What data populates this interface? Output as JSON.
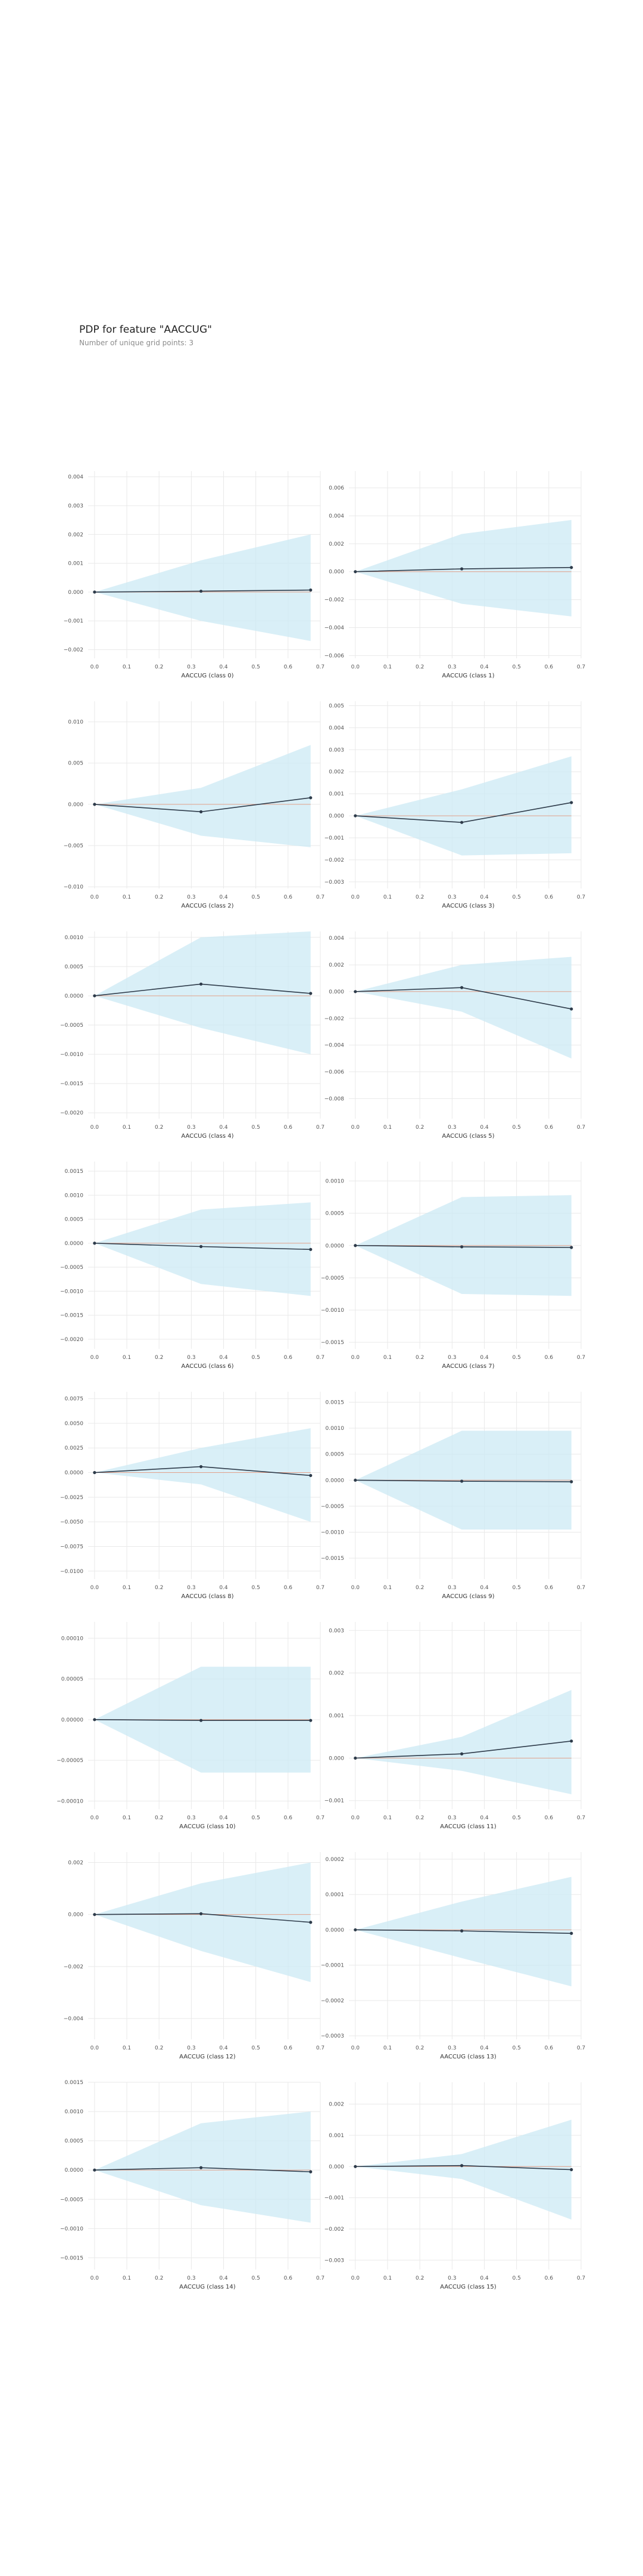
{
  "title": "PDP for feature \"AACCUG\"",
  "subtitle": "Number of unique grid points: 3",
  "colors": {
    "band": "#cce9f4",
    "line": "#2e3b4a",
    "zero": "#e2a08a",
    "grid": "#e9e9e9"
  },
  "chart_data": [
    {
      "type": "line",
      "xlabel": "AACCUG (class 0)",
      "x": [
        0,
        0.33,
        0.67
      ],
      "y": [
        0,
        3e-05,
        7e-05
      ],
      "lower": [
        0,
        -0.001,
        -0.0017
      ],
      "upper": [
        0,
        0.0011,
        0.002
      ],
      "ylim": [
        -0.0023,
        0.0042
      ],
      "yticks": [
        0.004,
        0.003,
        0.002,
        0.001,
        0.0,
        -0.001,
        -0.002
      ],
      "ytick_labels": [
        "0.004",
        "0.003",
        "0.002",
        "0.001",
        "0.000",
        "−0.001",
        "−0.002"
      ],
      "xlim": [
        -0.02,
        0.7
      ],
      "xticks": [
        0.0,
        0.1,
        0.2,
        0.3,
        0.4,
        0.5,
        0.6,
        0.7
      ]
    },
    {
      "type": "line",
      "xlabel": "AACCUG (class 1)",
      "x": [
        0,
        0.33,
        0.67
      ],
      "y": [
        0,
        0.0002,
        0.0003
      ],
      "lower": [
        0,
        -0.0023,
        -0.0032
      ],
      "upper": [
        0,
        0.0027,
        0.0037
      ],
      "ylim": [
        -0.0062,
        0.0072
      ],
      "yticks": [
        0.006,
        0.004,
        0.002,
        0.0,
        -0.002,
        -0.004,
        -0.006
      ],
      "ytick_labels": [
        "0.006",
        "0.004",
        "0.002",
        "0.000",
        "−0.002",
        "−0.004",
        "−0.006"
      ],
      "xlim": [
        -0.02,
        0.7
      ],
      "xticks": [
        0.0,
        0.1,
        0.2,
        0.3,
        0.4,
        0.5,
        0.6,
        0.7
      ]
    },
    {
      "type": "line",
      "xlabel": "AACCUG (class 2)",
      "x": [
        0,
        0.33,
        0.67
      ],
      "y": [
        0,
        -0.0009,
        0.0008
      ],
      "lower": [
        0,
        -0.0038,
        -0.0052
      ],
      "upper": [
        0,
        0.002,
        0.0072
      ],
      "ylim": [
        -0.0102,
        0.0125
      ],
      "yticks": [
        0.01,
        0.005,
        0.0,
        -0.005,
        -0.01
      ],
      "ytick_labels": [
        "0.010",
        "0.005",
        "0.000",
        "−0.005",
        "−0.010"
      ],
      "xlim": [
        -0.02,
        0.7
      ],
      "xticks": [
        0.0,
        0.1,
        0.2,
        0.3,
        0.4,
        0.5,
        0.6,
        0.7
      ]
    },
    {
      "type": "line",
      "xlabel": "AACCUG (class 3)",
      "x": [
        0,
        0.33,
        0.67
      ],
      "y": [
        0,
        -0.0003,
        0.0006
      ],
      "lower": [
        0,
        -0.0018,
        -0.0017
      ],
      "upper": [
        0,
        0.0012,
        0.0027
      ],
      "ylim": [
        -0.0033,
        0.0052
      ],
      "yticks": [
        0.005,
        0.004,
        0.003,
        0.002,
        0.001,
        0.0,
        -0.001,
        -0.002,
        -0.003
      ],
      "ytick_labels": [
        "0.005",
        "0.004",
        "0.003",
        "0.002",
        "0.001",
        "0.000",
        "−0.001",
        "−0.002",
        "−0.003"
      ],
      "xlim": [
        -0.02,
        0.7
      ],
      "xticks": [
        0.0,
        0.1,
        0.2,
        0.3,
        0.4,
        0.5,
        0.6,
        0.7
      ]
    },
    {
      "type": "line",
      "xlabel": "AACCUG (class 4)",
      "x": [
        0,
        0.33,
        0.67
      ],
      "y": [
        0,
        0.0002,
        4e-05
      ],
      "lower": [
        0,
        -0.00055,
        -0.001
      ],
      "upper": [
        0,
        0.001,
        0.0011
      ],
      "ylim": [
        -0.0021,
        0.0011
      ],
      "yticks": [
        0.001,
        0.0005,
        0.0,
        -0.0005,
        -0.001,
        -0.0015,
        -0.002
      ],
      "ytick_labels": [
        "0.0010",
        "0.0005",
        "0.0000",
        "−0.0005",
        "−0.0010",
        "−0.0015",
        "−0.0020"
      ],
      "xlim": [
        -0.02,
        0.7
      ],
      "xticks": [
        0.0,
        0.1,
        0.2,
        0.3,
        0.4,
        0.5,
        0.6,
        0.7
      ]
    },
    {
      "type": "line",
      "xlabel": "AACCUG (class 5)",
      "x": [
        0,
        0.33,
        0.67
      ],
      "y": [
        0,
        0.0003,
        -0.0013
      ],
      "lower": [
        0,
        -0.0015,
        -0.005
      ],
      "upper": [
        0,
        0.002,
        0.0026
      ],
      "ylim": [
        -0.0095,
        0.0045
      ],
      "yticks": [
        0.004,
        0.002,
        0.0,
        -0.002,
        -0.004,
        -0.006,
        -0.008
      ],
      "ytick_labels": [
        "0.004",
        "0.002",
        "0.000",
        "−0.002",
        "−0.004",
        "−0.006",
        "−0.008"
      ],
      "xlim": [
        -0.02,
        0.7
      ],
      "xticks": [
        0.0,
        0.1,
        0.2,
        0.3,
        0.4,
        0.5,
        0.6,
        0.7
      ]
    },
    {
      "type": "line",
      "xlabel": "AACCUG (class 6)",
      "x": [
        0,
        0.33,
        0.67
      ],
      "y": [
        0,
        -7e-05,
        -0.00013
      ],
      "lower": [
        0,
        -0.00085,
        -0.0011
      ],
      "upper": [
        0,
        0.0007,
        0.00085
      ],
      "ylim": [
        -0.0022,
        0.0017
      ],
      "yticks": [
        0.0015,
        0.001,
        0.0005,
        0.0,
        -0.0005,
        -0.001,
        -0.0015,
        -0.002
      ],
      "ytick_labels": [
        "0.0015",
        "0.0010",
        "0.0005",
        "0.0000",
        "−0.0005",
        "−0.0010",
        "−0.0015",
        "−0.0020"
      ],
      "xlim": [
        -0.02,
        0.7
      ],
      "xticks": [
        0.0,
        0.1,
        0.2,
        0.3,
        0.4,
        0.5,
        0.6,
        0.7
      ]
    },
    {
      "type": "line",
      "xlabel": "AACCUG (class 7)",
      "x": [
        0,
        0.33,
        0.67
      ],
      "y": [
        0,
        -2e-05,
        -3e-05
      ],
      "lower": [
        0,
        -0.00075,
        -0.00078
      ],
      "upper": [
        0,
        0.00075,
        0.00078
      ],
      "ylim": [
        -0.0016,
        0.0013
      ],
      "yticks": [
        0.001,
        0.0005,
        0.0,
        -0.0005,
        -0.001,
        -0.0015
      ],
      "ytick_labels": [
        "0.0010",
        "0.0005",
        "0.0000",
        "−0.0005",
        "−0.0010",
        "−0.0015"
      ],
      "xlim": [
        -0.02,
        0.7
      ],
      "xticks": [
        0.0,
        0.1,
        0.2,
        0.3,
        0.4,
        0.5,
        0.6,
        0.7
      ]
    },
    {
      "type": "line",
      "xlabel": "AACCUG (class 8)",
      "x": [
        0,
        0.33,
        0.67
      ],
      "y": [
        0,
        0.0006,
        -0.0003
      ],
      "lower": [
        0,
        -0.0012,
        -0.005
      ],
      "upper": [
        0,
        0.0025,
        0.0045
      ],
      "ylim": [
        -0.0108,
        0.0082
      ],
      "yticks": [
        0.0075,
        0.005,
        0.0025,
        0.0,
        -0.0025,
        -0.005,
        -0.0075,
        -0.01
      ],
      "ytick_labels": [
        "0.0075",
        "0.0050",
        "0.0025",
        "0.0000",
        "−0.0025",
        "−0.0050",
        "−0.0075",
        "−0.0100"
      ],
      "xlim": [
        -0.02,
        0.7
      ],
      "xticks": [
        0.0,
        0.1,
        0.2,
        0.3,
        0.4,
        0.5,
        0.6,
        0.7
      ]
    },
    {
      "type": "line",
      "xlabel": "AACCUG (class 9)",
      "x": [
        0,
        0.33,
        0.67
      ],
      "y": [
        0,
        -2e-05,
        -3e-05
      ],
      "lower": [
        0,
        -0.00095,
        -0.00095
      ],
      "upper": [
        0,
        0.00095,
        0.00095
      ],
      "ylim": [
        -0.0019,
        0.0017
      ],
      "yticks": [
        0.0015,
        0.001,
        0.0005,
        0.0,
        -0.0005,
        -0.001,
        -0.0015
      ],
      "ytick_labels": [
        "0.0015",
        "0.0010",
        "0.0005",
        "0.0000",
        "−0.0005",
        "−0.0010",
        "−0.0015"
      ],
      "xlim": [
        -0.02,
        0.7
      ],
      "xticks": [
        0.0,
        0.1,
        0.2,
        0.3,
        0.4,
        0.5,
        0.6,
        0.7
      ]
    },
    {
      "type": "line",
      "xlabel": "AACCUG (class 10)",
      "x": [
        0,
        0.33,
        0.67
      ],
      "y": [
        0,
        -1e-06,
        -1e-06
      ],
      "lower": [
        0,
        -6.5e-05,
        -6.5e-05
      ],
      "upper": [
        0,
        6.5e-05,
        6.5e-05
      ],
      "ylim": [
        -0.00011,
        0.00012
      ],
      "yticks": [
        0.0001,
        5e-05,
        0.0,
        -5e-05,
        -0.0001
      ],
      "ytick_labels": [
        "0.00010",
        "0.00005",
        "0.00000",
        "−0.00005",
        "−0.00010"
      ],
      "xlim": [
        -0.02,
        0.7
      ],
      "xticks": [
        0.0,
        0.1,
        0.2,
        0.3,
        0.4,
        0.5,
        0.6,
        0.7
      ]
    },
    {
      "type": "line",
      "xlabel": "AACCUG (class 11)",
      "x": [
        0,
        0.33,
        0.67
      ],
      "y": [
        0,
        0.0001,
        0.0004
      ],
      "lower": [
        0,
        -0.0003,
        -0.00085
      ],
      "upper": [
        0,
        0.0005,
        0.0016
      ],
      "ylim": [
        -0.0012,
        0.0032
      ],
      "yticks": [
        0.003,
        0.002,
        0.001,
        0.0,
        -0.001
      ],
      "ytick_labels": [
        "0.003",
        "0.002",
        "0.001",
        "0.000",
        "−0.001"
      ],
      "xlim": [
        -0.02,
        0.7
      ],
      "xticks": [
        0.0,
        0.1,
        0.2,
        0.3,
        0.4,
        0.5,
        0.6,
        0.7
      ]
    },
    {
      "type": "line",
      "xlabel": "AACCUG (class 12)",
      "x": [
        0,
        0.33,
        0.67
      ],
      "y": [
        0,
        3e-05,
        -0.0003
      ],
      "lower": [
        0,
        -0.0014,
        -0.0026
      ],
      "upper": [
        0,
        0.0012,
        0.002
      ],
      "ylim": [
        -0.0048,
        0.0024
      ],
      "yticks": [
        0.002,
        0.0,
        -0.002,
        -0.004
      ],
      "ytick_labels": [
        "0.002",
        "0.000",
        "−0.002",
        "−0.004"
      ],
      "xlim": [
        -0.02,
        0.7
      ],
      "xticks": [
        0.0,
        0.1,
        0.2,
        0.3,
        0.4,
        0.5,
        0.6,
        0.7
      ]
    },
    {
      "type": "line",
      "xlabel": "AACCUG (class 13)",
      "x": [
        0,
        0.33,
        0.67
      ],
      "y": [
        0,
        -3e-06,
        -1e-05
      ],
      "lower": [
        0,
        -8e-05,
        -0.00016
      ],
      "upper": [
        0,
        8e-05,
        0.00015
      ],
      "ylim": [
        -0.00031,
        0.00022
      ],
      "yticks": [
        0.0002,
        0.0001,
        0.0,
        -0.0001,
        -0.0002,
        -0.0003
      ],
      "ytick_labels": [
        "0.0002",
        "0.0001",
        "0.0000",
        "−0.0001",
        "−0.0002",
        "−0.0003"
      ],
      "xlim": [
        -0.02,
        0.7
      ],
      "xticks": [
        0.0,
        0.1,
        0.2,
        0.3,
        0.4,
        0.5,
        0.6,
        0.7
      ]
    },
    {
      "type": "line",
      "xlabel": "AACCUG (class 14)",
      "x": [
        0,
        0.33,
        0.67
      ],
      "y": [
        0,
        4e-05,
        -3e-05
      ],
      "lower": [
        0,
        -0.0006,
        -0.0009
      ],
      "upper": [
        0,
        0.0008,
        0.001
      ],
      "ylim": [
        -0.0017,
        0.0015
      ],
      "yticks": [
        0.0015,
        0.001,
        0.0005,
        0.0,
        -0.0005,
        -0.001,
        -0.0015
      ],
      "ytick_labels": [
        "0.0015",
        "0.0010",
        "0.0005",
        "0.0000",
        "−0.0005",
        "−0.0010",
        "−0.0015"
      ],
      "xlim": [
        -0.02,
        0.7
      ],
      "xticks": [
        0.0,
        0.1,
        0.2,
        0.3,
        0.4,
        0.5,
        0.6,
        0.7
      ]
    },
    {
      "type": "line",
      "xlabel": "AACCUG (class 15)",
      "x": [
        0,
        0.33,
        0.67
      ],
      "y": [
        0,
        3e-05,
        -0.0001
      ],
      "lower": [
        0,
        -0.0004,
        -0.0017
      ],
      "upper": [
        0,
        0.0004,
        0.0015
      ],
      "ylim": [
        -0.0033,
        0.0027
      ],
      "yticks": [
        0.002,
        0.001,
        0.0,
        -0.001,
        -0.002,
        -0.003
      ],
      "ytick_labels": [
        "0.002",
        "0.001",
        "0.000",
        "−0.001",
        "−0.002",
        "−0.003"
      ],
      "xlim": [
        -0.02,
        0.7
      ],
      "xticks": [
        0.0,
        0.1,
        0.2,
        0.3,
        0.4,
        0.5,
        0.6,
        0.7
      ]
    }
  ]
}
